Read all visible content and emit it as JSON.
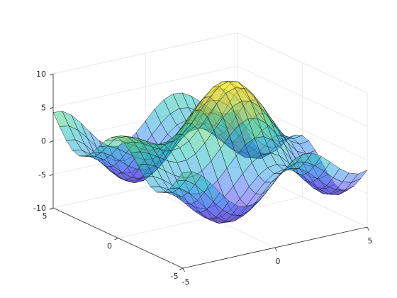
{
  "chart_data": {
    "type": "surface",
    "title": "",
    "xlabel": "",
    "ylabel": "",
    "zlabel": "",
    "function": "z = 3*(sin(x) + cos(y)) + 5*sin(r)/r, r = sqrt(x^2 + y^2)",
    "x_range": [
      -5,
      5
    ],
    "y_range": [
      -5,
      5
    ],
    "grid_resolution": [
      21,
      21
    ],
    "xlim": [
      -5,
      5
    ],
    "ylim": [
      -5,
      5
    ],
    "zlim": [
      -10,
      10
    ],
    "x_ticks": [
      -5,
      0,
      5
    ],
    "y_ticks": [
      -5,
      0,
      5
    ],
    "z_ticks": [
      -10,
      -5,
      0,
      5,
      10
    ],
    "x_tick_labels": [
      "-5",
      "0",
      "5"
    ],
    "y_tick_labels": [
      "-5",
      "0",
      "5"
    ],
    "z_tick_labels": [
      "-10",
      "-5",
      "0",
      "5",
      "10"
    ],
    "grid": true,
    "face_alpha": 0.5,
    "colormap": "parula",
    "colormap_colors": [
      "#3e26a8",
      "#4743f9",
      "#2797eb",
      "#13beb8",
      "#52cc6f",
      "#d4bb21",
      "#f9fb15"
    ],
    "view": "default 3-D"
  }
}
